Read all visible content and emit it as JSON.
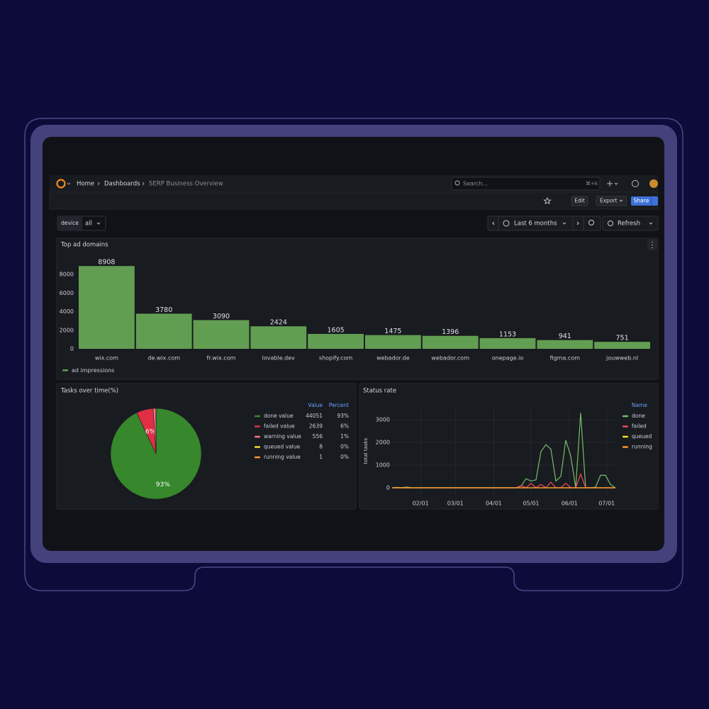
{
  "nav": {
    "breadcrumbs": [
      "Home",
      "Dashboards",
      "SERP Business Overview"
    ],
    "search": "Search...",
    "shortcut": "⌘+k",
    "edit": "Edit",
    "export": "Export",
    "share": "Share"
  },
  "toolbar": {
    "variable_label": "device",
    "variable_value": "all",
    "time_range": "Last 6 months",
    "refresh": "Refresh"
  },
  "chart_data": [
    {
      "type": "bar",
      "title": "Top ad domains",
      "categories": [
        "wix.com",
        "de.wix.com",
        "fr.wix.com",
        "lovable.dev",
        "shopify.com",
        "webador.de",
        "webador.com",
        "onepage.io",
        "figma.com",
        "jouwweb.nl"
      ],
      "series": [
        {
          "name": "ad impressions",
          "color": "#629e51",
          "values": [
            8908,
            3780,
            3090,
            2424,
            1605,
            1475,
            1396,
            1153,
            941,
            751
          ]
        }
      ],
      "ylim": [
        0,
        9000
      ],
      "yticks": [
        0,
        2000,
        4000,
        6000,
        8000
      ]
    },
    {
      "type": "pie",
      "title": "Tasks over time(%)",
      "categories": [
        "done value",
        "failed value",
        "warning value",
        "queued value",
        "running value"
      ],
      "colors": [
        "#37872d",
        "#e02f44",
        "#ff7383",
        "#fade2a",
        "#ff9830"
      ],
      "values": [
        93,
        6,
        1,
        0,
        0
      ],
      "value_labels": [
        "93%",
        "6%",
        "1%",
        "0%",
        "0%"
      ],
      "counts": [
        44051,
        2639,
        556,
        8,
        1
      ],
      "legend_columns": [
        "Value",
        "Percent"
      ]
    },
    {
      "type": "line",
      "title": "Status rate",
      "ylabel": "total tasks",
      "legend_title": "Name",
      "x": [
        8,
        12,
        16,
        20,
        24,
        28,
        32,
        36,
        40,
        44,
        48,
        52,
        56,
        60,
        64,
        68,
        72,
        76,
        80,
        84,
        88,
        92,
        96,
        100,
        104,
        108,
        112,
        116,
        120,
        124,
        128,
        132,
        136,
        140,
        144,
        148,
        152,
        156,
        160,
        164,
        168,
        172,
        176,
        180,
        184,
        188
      ],
      "series": [
        {
          "name": "done",
          "color": "#73bf69",
          "values": [
            0,
            20,
            10,
            30,
            0,
            0,
            0,
            0,
            0,
            0,
            0,
            0,
            0,
            0,
            0,
            0,
            0,
            0,
            0,
            0,
            0,
            0,
            0,
            0,
            0,
            0,
            80,
            400,
            300,
            350,
            1600,
            1900,
            1700,
            300,
            500,
            2100,
            1400,
            0,
            3300,
            0,
            0,
            30,
            550,
            550,
            150,
            0
          ]
        },
        {
          "name": "failed",
          "color": "#f2495c",
          "values": [
            0,
            0,
            0,
            0,
            0,
            0,
            0,
            0,
            0,
            0,
            0,
            0,
            0,
            0,
            0,
            0,
            0,
            0,
            0,
            0,
            0,
            0,
            0,
            0,
            0,
            0,
            100,
            0,
            200,
            0,
            150,
            0,
            250,
            0,
            0,
            200,
            0,
            0,
            600,
            0,
            0,
            0,
            0,
            0,
            0,
            0
          ]
        },
        {
          "name": "queued",
          "color": "#fade2a",
          "values": [
            0,
            0,
            0,
            0,
            0,
            0,
            0,
            0,
            0,
            0,
            0,
            0,
            0,
            0,
            0,
            0,
            0,
            0,
            0,
            0,
            0,
            0,
            0,
            0,
            0,
            0,
            0,
            0,
            0,
            0,
            0,
            0,
            0,
            0,
            0,
            0,
            0,
            0,
            0,
            0,
            0,
            0,
            0,
            0,
            0,
            0
          ]
        },
        {
          "name": "running",
          "color": "#ff9830",
          "values": [
            0,
            0,
            0,
            0,
            0,
            0,
            0,
            0,
            0,
            0,
            0,
            0,
            0,
            0,
            0,
            0,
            0,
            0,
            0,
            0,
            0,
            0,
            0,
            0,
            0,
            0,
            0,
            0,
            0,
            0,
            0,
            0,
            0,
            0,
            0,
            0,
            0,
            0,
            0,
            0,
            0,
            0,
            0,
            0,
            0,
            0
          ]
        }
      ],
      "xlim": [
        8,
        188
      ],
      "xticks": [
        {
          "value": 31,
          "label": "02/01"
        },
        {
          "value": 59,
          "label": "03/01"
        },
        {
          "value": 90,
          "label": "04/01"
        },
        {
          "value": 120,
          "label": "05/01"
        },
        {
          "value": 151,
          "label": "06/01"
        },
        {
          "value": 181,
          "label": "07/01"
        }
      ],
      "ylim": [
        -300,
        3500
      ],
      "yticks": [
        0,
        1000,
        2000,
        3000
      ],
      "grid": true
    }
  ]
}
